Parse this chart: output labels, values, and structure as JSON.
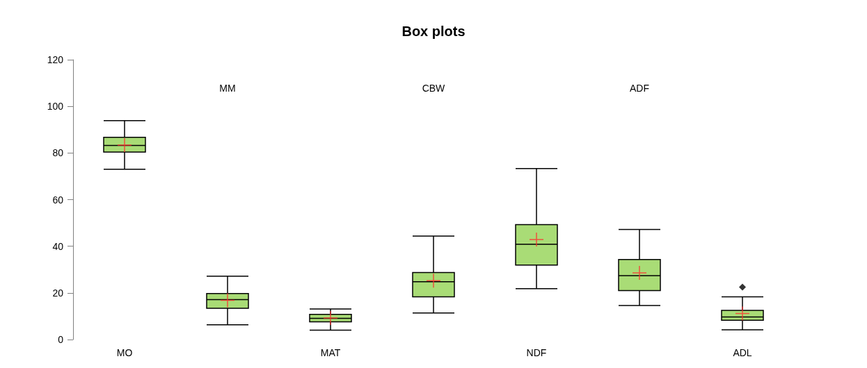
{
  "chart_data": {
    "type": "box",
    "title": "Box plots",
    "categories": [
      "MO",
      "MM",
      "MAT",
      "CBW",
      "NDF",
      "ADF",
      "ADL"
    ],
    "ylim": [
      0,
      120
    ],
    "yticks": [
      0,
      20,
      40,
      60,
      80,
      100,
      120
    ],
    "series": [
      {
        "color": "#a9dc76",
        "boxes": [
          {
            "low": 73.0,
            "q1": 80.4,
            "median": 83.2,
            "q3": 86.7,
            "high": 93.9,
            "mean": 83.4
          },
          {
            "low": 6.3,
            "q1": 13.4,
            "median": 17.1,
            "q3": 19.7,
            "high": 27.2,
            "mean": 16.8
          },
          {
            "low": 4.0,
            "q1": 7.6,
            "median": 9.1,
            "q3": 10.8,
            "high": 13.1,
            "mean": 9.2
          },
          {
            "low": 11.4,
            "q1": 18.3,
            "median": 24.8,
            "q3": 28.7,
            "high": 44.4,
            "mean": 25.2
          },
          {
            "low": 21.8,
            "q1": 31.9,
            "median": 40.9,
            "q3": 49.3,
            "high": 73.3,
            "mean": 42.9
          },
          {
            "low": 14.6,
            "q1": 21.0,
            "median": 27.4,
            "q3": 34.3,
            "high": 47.2,
            "mean": 28.6
          },
          {
            "low": 4.2,
            "q1": 8.3,
            "median": 9.7,
            "q3": 12.5,
            "high": 18.3,
            "mean": 11.2,
            "outliers": [
              22.5
            ]
          }
        ]
      }
    ]
  }
}
